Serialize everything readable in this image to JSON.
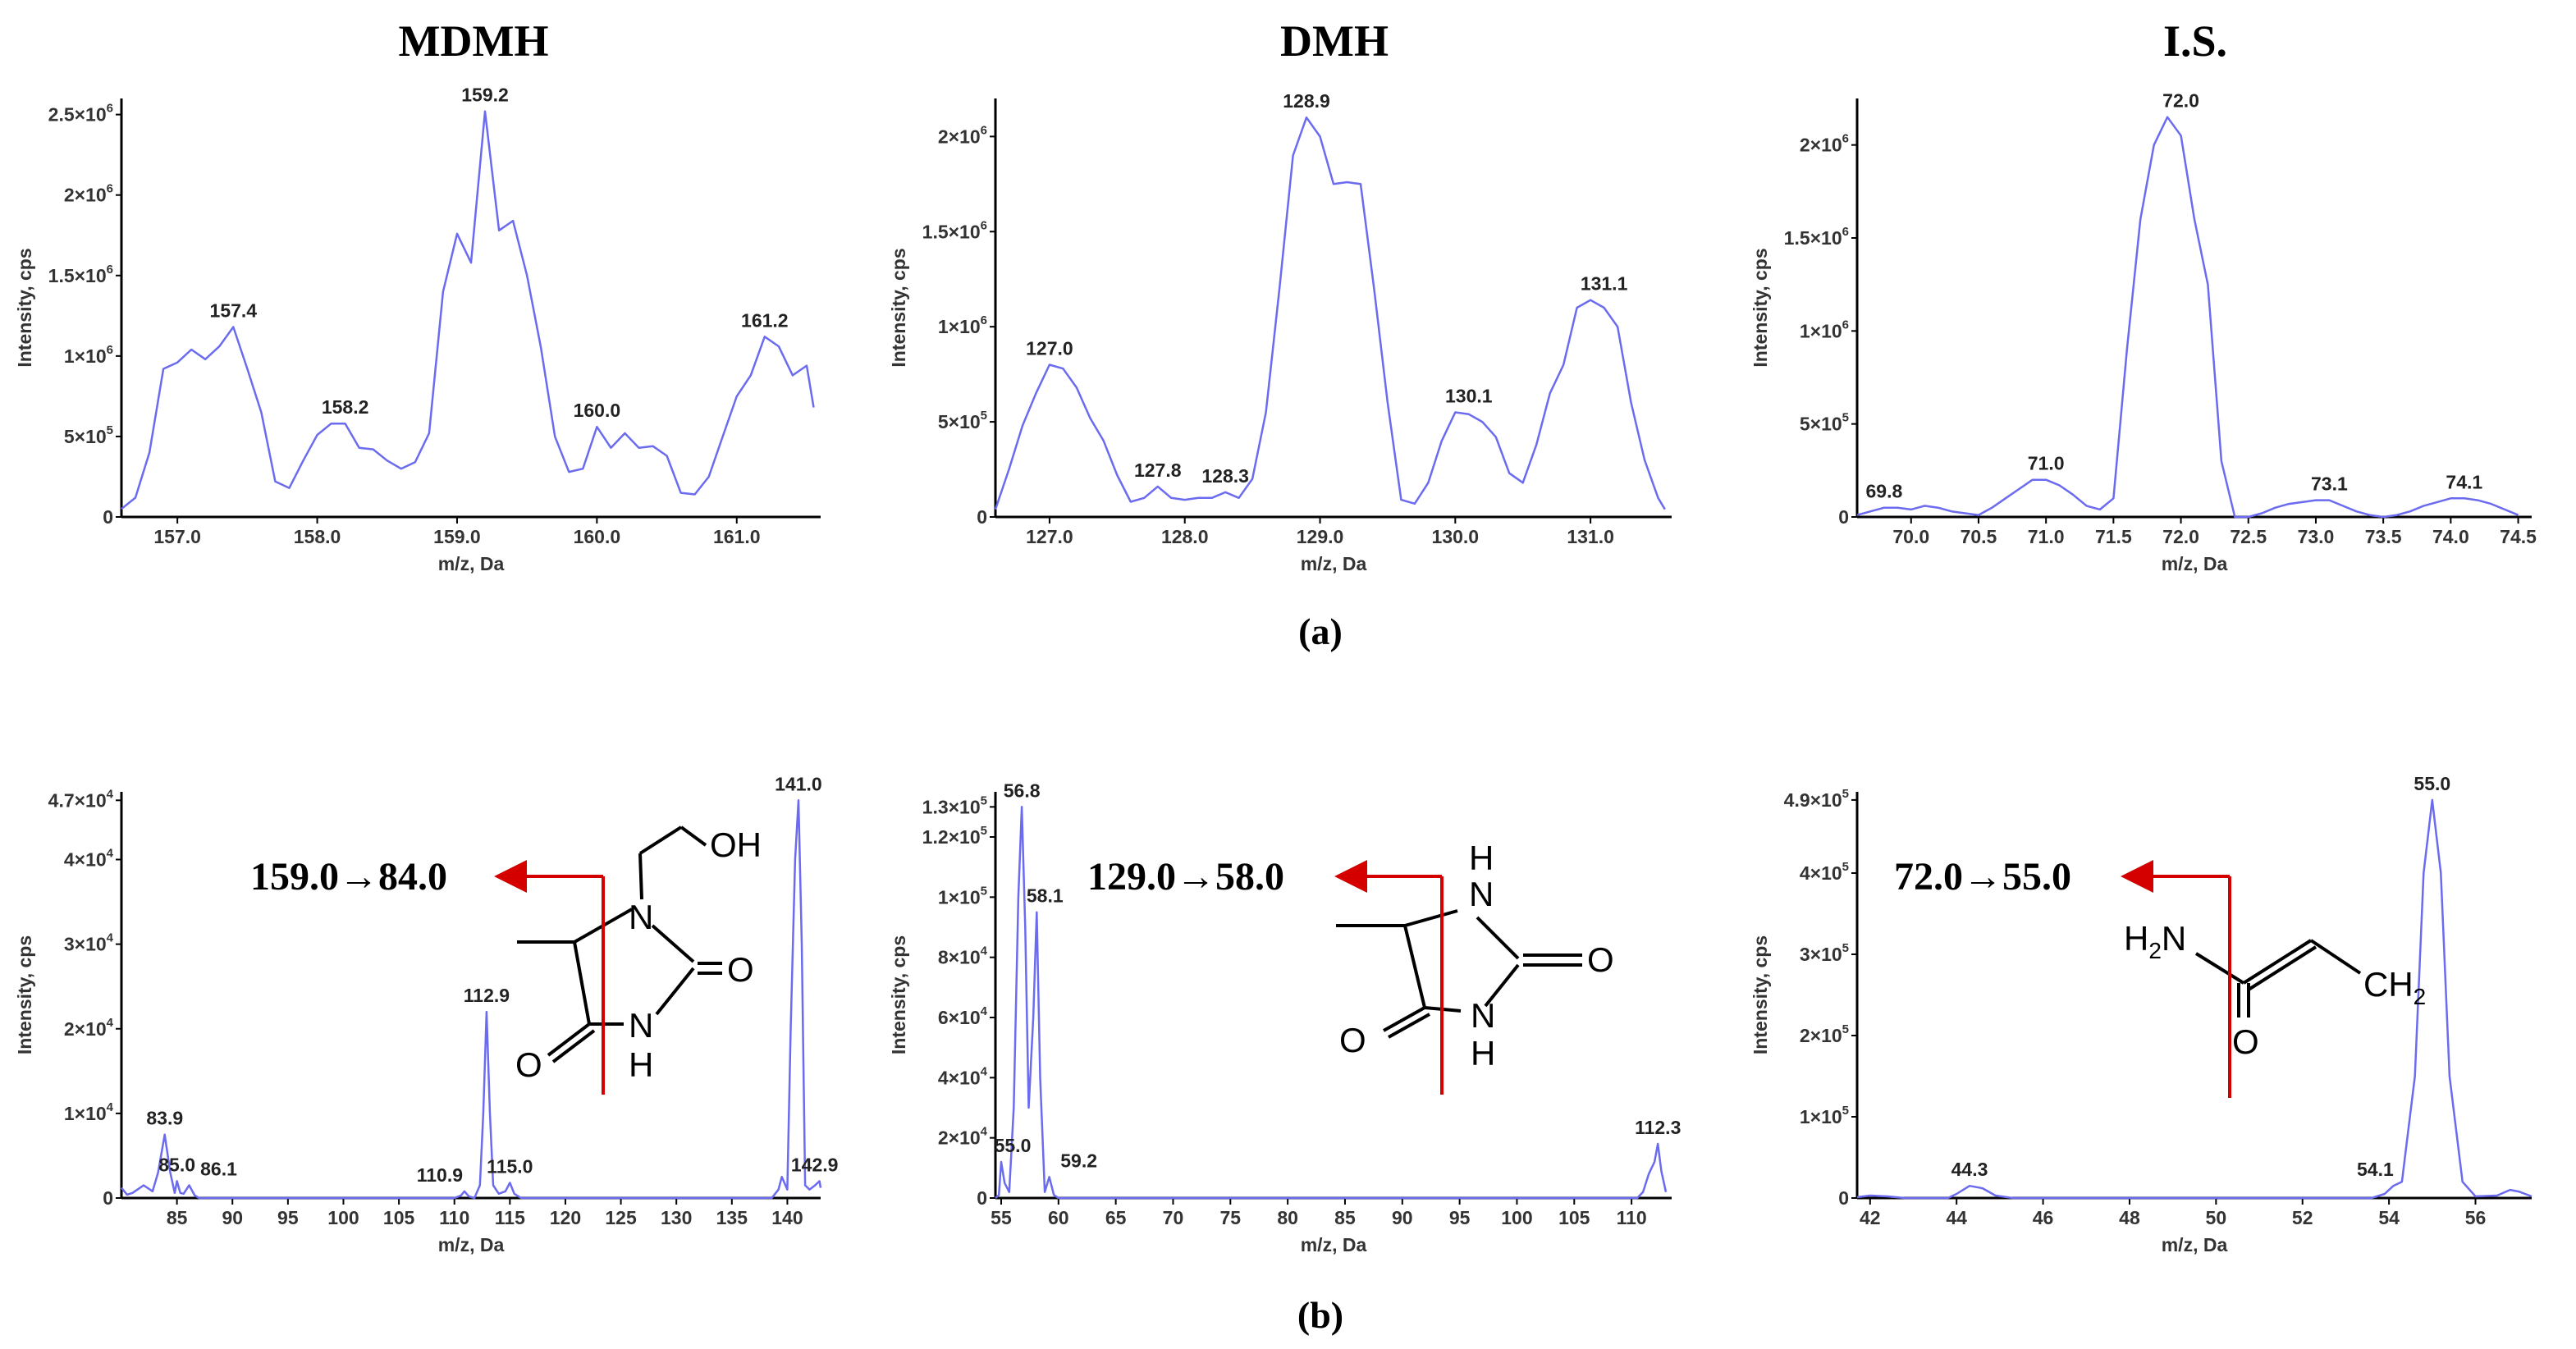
{
  "column_titles": [
    "MDMH",
    "DMH",
    "I.S."
  ],
  "panel_labels": {
    "a": "(a)",
    "b": "(b)"
  },
  "colors": {
    "trace": "#6b6bf0",
    "arrow": "#d40000",
    "axis": "#000000"
  },
  "chart_data": [
    {
      "id": "a1",
      "type": "line",
      "title": "",
      "xlabel": "m/z, Da",
      "ylabel": "Intensity, cps",
      "xlim": [
        156.6,
        161.6
      ],
      "ylim": [
        0,
        2600000
      ],
      "xticks": [
        {
          "v": 157.0,
          "t": "157.0"
        },
        {
          "v": 158.0,
          "t": "158.0"
        },
        {
          "v": 159.0,
          "t": "159.0"
        },
        {
          "v": 160.0,
          "t": "160.0"
        },
        {
          "v": 161.0,
          "t": "161.0"
        }
      ],
      "yticks": [
        {
          "v": 0,
          "m": "0",
          "e": ""
        },
        {
          "v": 500000,
          "m": "5×10",
          "e": "5"
        },
        {
          "v": 1000000,
          "m": "1×10",
          "e": "6"
        },
        {
          "v": 1500000,
          "m": "1.5×10",
          "e": "6"
        },
        {
          "v": 2000000,
          "m": "2×10",
          "e": "6"
        },
        {
          "v": 2500000,
          "m": "2.5×10",
          "e": "6"
        }
      ],
      "x": [
        156.6,
        156.7,
        156.8,
        156.9,
        157.0,
        157.1,
        157.2,
        157.3,
        157.4,
        157.5,
        157.6,
        157.7,
        157.8,
        157.9,
        158.0,
        158.1,
        158.2,
        158.3,
        158.4,
        158.5,
        158.6,
        158.7,
        158.8,
        158.9,
        159.0,
        159.1,
        159.2,
        159.3,
        159.4,
        159.5,
        159.6,
        159.7,
        159.8,
        159.9,
        160.0,
        160.1,
        160.2,
        160.3,
        160.4,
        160.5,
        160.6,
        160.7,
        160.8,
        160.9,
        161.0,
        161.1,
        161.2,
        161.3,
        161.4,
        161.5,
        161.55
      ],
      "y": [
        50000,
        120000,
        400000,
        920000,
        960000,
        1040000,
        980000,
        1060000,
        1180000,
        920000,
        650000,
        220000,
        180000,
        350000,
        510000,
        580000,
        580000,
        430000,
        420000,
        350000,
        300000,
        340000,
        520000,
        1400000,
        1760000,
        1580000,
        2520000,
        1780000,
        1840000,
        1500000,
        1050000,
        500000,
        280000,
        300000,
        560000,
        430000,
        520000,
        430000,
        440000,
        380000,
        150000,
        140000,
        250000,
        500000,
        750000,
        880000,
        1120000,
        1060000,
        880000,
        940000,
        680000
      ],
      "peaks": [
        {
          "x": 157.4,
          "y": 1180000,
          "t": "157.4"
        },
        {
          "x": 158.2,
          "y": 580000,
          "t": "158.2"
        },
        {
          "x": 159.2,
          "y": 2520000,
          "t": "159.2"
        },
        {
          "x": 160.0,
          "y": 560000,
          "t": "160.0"
        },
        {
          "x": 161.2,
          "y": 1120000,
          "t": "161.2"
        }
      ]
    },
    {
      "id": "a2",
      "type": "line",
      "title": "",
      "xlabel": "m/z, Da",
      "ylabel": "Intensity, cps",
      "xlim": [
        126.6,
        131.6
      ],
      "ylim": [
        0,
        2200000
      ],
      "xticks": [
        {
          "v": 127.0,
          "t": "127.0"
        },
        {
          "v": 128.0,
          "t": "128.0"
        },
        {
          "v": 129.0,
          "t": "129.0"
        },
        {
          "v": 130.0,
          "t": "130.0"
        },
        {
          "v": 131.0,
          "t": "131.0"
        }
      ],
      "yticks": [
        {
          "v": 0,
          "m": "0",
          "e": ""
        },
        {
          "v": 500000,
          "m": "5×10",
          "e": "5"
        },
        {
          "v": 1000000,
          "m": "1×10",
          "e": "6"
        },
        {
          "v": 1500000,
          "m": "1.5×10",
          "e": "6"
        },
        {
          "v": 2000000,
          "m": "2×10",
          "e": "6"
        }
      ],
      "x": [
        126.6,
        126.7,
        126.8,
        126.9,
        127.0,
        127.1,
        127.2,
        127.3,
        127.4,
        127.5,
        127.6,
        127.7,
        127.8,
        127.9,
        128.0,
        128.1,
        128.2,
        128.3,
        128.4,
        128.5,
        128.6,
        128.7,
        128.8,
        128.9,
        129.0,
        129.1,
        129.2,
        129.3,
        129.4,
        129.5,
        129.6,
        129.7,
        129.8,
        129.9,
        130.0,
        130.1,
        130.2,
        130.3,
        130.4,
        130.5,
        130.6,
        130.7,
        130.8,
        130.9,
        131.0,
        131.1,
        131.2,
        131.3,
        131.4,
        131.5,
        131.55
      ],
      "y": [
        40000,
        250000,
        480000,
        650000,
        800000,
        780000,
        680000,
        520000,
        400000,
        220000,
        80000,
        100000,
        160000,
        100000,
        90000,
        100000,
        100000,
        130000,
        100000,
        200000,
        550000,
        1200000,
        1900000,
        2100000,
        2000000,
        1750000,
        1760000,
        1750000,
        1200000,
        600000,
        90000,
        70000,
        180000,
        400000,
        550000,
        540000,
        500000,
        420000,
        230000,
        180000,
        380000,
        650000,
        800000,
        1100000,
        1140000,
        1100000,
        1000000,
        600000,
        300000,
        100000,
        40000
      ],
      "peaks": [
        {
          "x": 127.0,
          "y": 800000,
          "t": "127.0"
        },
        {
          "x": 127.8,
          "y": 160000,
          "t": "127.8"
        },
        {
          "x": 128.3,
          "y": 130000,
          "t": "128.3"
        },
        {
          "x": 128.9,
          "y": 2100000,
          "t": "128.9"
        },
        {
          "x": 130.1,
          "y": 550000,
          "t": "130.1"
        },
        {
          "x": 131.1,
          "y": 1140000,
          "t": "131.1"
        }
      ]
    },
    {
      "id": "a3",
      "type": "line",
      "title": "",
      "xlabel": "m/z, Da",
      "ylabel": "Intensity, cps",
      "xlim": [
        69.6,
        74.6
      ],
      "ylim": [
        0,
        2250000
      ],
      "xticks": [
        {
          "v": 70.0,
          "t": "70.0"
        },
        {
          "v": 70.5,
          "t": "70.5"
        },
        {
          "v": 71.0,
          "t": "71.0"
        },
        {
          "v": 71.5,
          "t": "71.5"
        },
        {
          "v": 72.0,
          "t": "72.0"
        },
        {
          "v": 72.5,
          "t": "72.5"
        },
        {
          "v": 73.0,
          "t": "73.0"
        },
        {
          "v": 73.5,
          "t": "73.5"
        },
        {
          "v": 74.0,
          "t": "74.0"
        },
        {
          "v": 74.5,
          "t": "74.5"
        }
      ],
      "yticks": [
        {
          "v": 0,
          "m": "0",
          "e": ""
        },
        {
          "v": 500000,
          "m": "5×10",
          "e": "5"
        },
        {
          "v": 1000000,
          "m": "1×10",
          "e": "6"
        },
        {
          "v": 1500000,
          "m": "1.5×10",
          "e": "6"
        },
        {
          "v": 2000000,
          "m": "2×10",
          "e": "6"
        }
      ],
      "x": [
        69.6,
        69.7,
        69.8,
        69.9,
        70.0,
        70.1,
        70.2,
        70.3,
        70.4,
        70.5,
        70.6,
        70.7,
        70.8,
        70.9,
        71.0,
        71.1,
        71.2,
        71.3,
        71.4,
        71.5,
        71.6,
        71.7,
        71.8,
        71.9,
        72.0,
        72.1,
        72.2,
        72.3,
        72.4,
        72.5,
        72.6,
        72.7,
        72.8,
        72.9,
        73.0,
        73.1,
        73.2,
        73.3,
        73.4,
        73.5,
        73.6,
        73.7,
        73.8,
        73.9,
        74.0,
        74.1,
        74.2,
        74.3,
        74.4,
        74.5
      ],
      "y": [
        10000,
        30000,
        50000,
        50000,
        40000,
        60000,
        50000,
        30000,
        20000,
        10000,
        50000,
        100000,
        150000,
        200000,
        200000,
        170000,
        120000,
        60000,
        40000,
        100000,
        900000,
        1600000,
        2000000,
        2150000,
        2050000,
        1600000,
        1250000,
        300000,
        0,
        0,
        20000,
        50000,
        70000,
        80000,
        90000,
        90000,
        60000,
        30000,
        10000,
        0,
        10000,
        30000,
        60000,
        80000,
        100000,
        100000,
        90000,
        70000,
        40000,
        10000
      ],
      "peaks": [
        {
          "x": 69.8,
          "y": 50000,
          "t": "69.8"
        },
        {
          "x": 71.0,
          "y": 200000,
          "t": "71.0"
        },
        {
          "x": 72.0,
          "y": 2150000,
          "t": "72.0"
        },
        {
          "x": 73.1,
          "y": 90000,
          "t": "73.1"
        },
        {
          "x": 74.1,
          "y": 100000,
          "t": "74.1"
        }
      ]
    },
    {
      "id": "b1",
      "type": "line",
      "title": "",
      "xlabel": "m/z, Da",
      "ylabel": "Intensity, cps",
      "xlim": [
        80,
        143
      ],
      "ylim": [
        0,
        48000
      ],
      "xticks": [
        {
          "v": 85,
          "t": "85"
        },
        {
          "v": 90,
          "t": "90"
        },
        {
          "v": 95,
          "t": "95"
        },
        {
          "v": 100,
          "t": "100"
        },
        {
          "v": 105,
          "t": "105"
        },
        {
          "v": 110,
          "t": "110"
        },
        {
          "v": 115,
          "t": "115"
        },
        {
          "v": 120,
          "t": "120"
        },
        {
          "v": 125,
          "t": "125"
        },
        {
          "v": 130,
          "t": "130"
        },
        {
          "v": 135,
          "t": "135"
        },
        {
          "v": 140,
          "t": "140"
        }
      ],
      "yticks": [
        {
          "v": 0,
          "m": "0",
          "e": ""
        },
        {
          "v": 10000,
          "m": "1×10",
          "e": "4"
        },
        {
          "v": 20000,
          "m": "2×10",
          "e": "4"
        },
        {
          "v": 30000,
          "m": "3×10",
          "e": "4"
        },
        {
          "v": 40000,
          "m": "4×10",
          "e": "4"
        },
        {
          "v": 47000,
          "m": "4.7×10",
          "e": "4"
        }
      ],
      "x": [
        80.0,
        80.5,
        81.0,
        82.0,
        82.8,
        83.3,
        83.9,
        84.4,
        84.8,
        85.0,
        85.3,
        85.6,
        86.1,
        86.6,
        87.0,
        110.0,
        110.6,
        110.9,
        111.3,
        111.8,
        112.3,
        112.6,
        112.9,
        113.2,
        113.5,
        114.0,
        114.6,
        115.0,
        115.4,
        116.0,
        138.6,
        139.2,
        139.5,
        140.0,
        140.3,
        140.7,
        141.0,
        141.3,
        141.6,
        142.0,
        142.5,
        142.9,
        143.0
      ],
      "y": [
        1200,
        400,
        600,
        1500,
        800,
        3000,
        7500,
        3000,
        600,
        2000,
        600,
        500,
        1500,
        300,
        0,
        0,
        300,
        800,
        200,
        0,
        1500,
        10000,
        22000,
        10000,
        1500,
        500,
        800,
        1800,
        500,
        0,
        0,
        1000,
        2500,
        1000,
        20000,
        40000,
        47000,
        30000,
        1500,
        1000,
        1500,
        2000,
        1200
      ],
      "peaks": [
        {
          "x": 83.9,
          "y": 7500,
          "t": "83.9",
          "dx": 0
        },
        {
          "x": 85.0,
          "y": 2000,
          "t": "85.0",
          "dx": 0
        },
        {
          "x": 86.1,
          "y": 1500,
          "t": "86.1",
          "dx": 36
        },
        {
          "x": 110.9,
          "y": 800,
          "t": "110.9",
          "dx": -30
        },
        {
          "x": 112.9,
          "y": 22000,
          "t": "112.9",
          "dx": 0
        },
        {
          "x": 115.0,
          "y": 1800,
          "t": "115.0",
          "dx": 0
        },
        {
          "x": 141.0,
          "y": 47000,
          "t": "141.0",
          "dx": 0
        },
        {
          "x": 142.9,
          "y": 2000,
          "t": "142.9",
          "dx": -6
        }
      ]
    },
    {
      "id": "b2",
      "type": "line",
      "title": "",
      "xlabel": "m/z, Da",
      "ylabel": "Intensity, cps",
      "xlim": [
        54.5,
        113.5
      ],
      "ylim": [
        0,
        135000
      ],
      "xticks": [
        {
          "v": 55,
          "t": "55"
        },
        {
          "v": 60,
          "t": "60"
        },
        {
          "v": 65,
          "t": "65"
        },
        {
          "v": 70,
          "t": "70"
        },
        {
          "v": 75,
          "t": "75"
        },
        {
          "v": 80,
          "t": "80"
        },
        {
          "v": 85,
          "t": "85"
        },
        {
          "v": 90,
          "t": "90"
        },
        {
          "v": 95,
          "t": "95"
        },
        {
          "v": 100,
          "t": "100"
        },
        {
          "v": 105,
          "t": "105"
        },
        {
          "v": 110,
          "t": "110"
        }
      ],
      "yticks": [
        {
          "v": 0,
          "m": "0",
          "e": ""
        },
        {
          "v": 20000,
          "m": "2×10",
          "e": "4"
        },
        {
          "v": 40000,
          "m": "4×10",
          "e": "4"
        },
        {
          "v": 60000,
          "m": "6×10",
          "e": "4"
        },
        {
          "v": 80000,
          "m": "8×10",
          "e": "4"
        },
        {
          "v": 100000,
          "m": "1×10",
          "e": "5"
        },
        {
          "v": 120000,
          "m": "1.2×10",
          "e": "5"
        },
        {
          "v": 130000,
          "m": "1.3×10",
          "e": "5"
        }
      ],
      "x": [
        54.5,
        54.8,
        55.0,
        55.3,
        55.7,
        56.1,
        56.5,
        56.8,
        57.1,
        57.4,
        57.8,
        58.1,
        58.4,
        58.8,
        59.2,
        59.6,
        60.0,
        110.5,
        111.0,
        111.5,
        112.0,
        112.3,
        112.6,
        113.0
      ],
      "y": [
        0,
        1000,
        12000,
        5000,
        2000,
        30000,
        100000,
        130000,
        90000,
        30000,
        60000,
        95000,
        40000,
        2000,
        7000,
        1000,
        0,
        0,
        2000,
        8000,
        12000,
        18000,
        9000,
        2000
      ],
      "peaks": [
        {
          "x": 55.0,
          "y": 12000,
          "t": "55.0",
          "dx": 14
        },
        {
          "x": 56.8,
          "y": 130000,
          "t": "56.8",
          "dx": 0
        },
        {
          "x": 58.1,
          "y": 95000,
          "t": "58.1",
          "dx": 10
        },
        {
          "x": 59.2,
          "y": 7000,
          "t": "59.2",
          "dx": 36
        },
        {
          "x": 112.3,
          "y": 18000,
          "t": "112.3",
          "dx": 0
        }
      ]
    },
    {
      "id": "b3",
      "type": "line",
      "title": "",
      "xlabel": "m/z, Da",
      "ylabel": "Intensity, cps",
      "xlim": [
        41.7,
        57.3
      ],
      "ylim": [
        0,
        500000
      ],
      "xticks": [
        {
          "v": 42,
          "t": "42"
        },
        {
          "v": 44,
          "t": "44"
        },
        {
          "v": 46,
          "t": "46"
        },
        {
          "v": 48,
          "t": "48"
        },
        {
          "v": 50,
          "t": "50"
        },
        {
          "v": 52,
          "t": "52"
        },
        {
          "v": 54,
          "t": "54"
        },
        {
          "v": 56,
          "t": "56"
        }
      ],
      "yticks": [
        {
          "v": 0,
          "m": "0",
          "e": ""
        },
        {
          "v": 100000,
          "m": "1×10",
          "e": "5"
        },
        {
          "v": 200000,
          "m": "2×10",
          "e": "5"
        },
        {
          "v": 300000,
          "m": "3×10",
          "e": "5"
        },
        {
          "v": 400000,
          "m": "4×10",
          "e": "5"
        },
        {
          "v": 490000,
          "m": "4.9×10",
          "e": "5"
        }
      ],
      "x": [
        41.7,
        42.0,
        42.4,
        42.8,
        43.8,
        44.0,
        44.3,
        44.6,
        44.9,
        45.3,
        53.6,
        53.9,
        54.1,
        54.3,
        54.6,
        54.8,
        55.0,
        55.2,
        55.4,
        55.7,
        56.0,
        56.5,
        56.8,
        57.0,
        57.3
      ],
      "y": [
        1000,
        3000,
        2000,
        0,
        0,
        5000,
        15000,
        12000,
        3000,
        0,
        0,
        5000,
        15000,
        20000,
        150000,
        400000,
        490000,
        400000,
        150000,
        20000,
        2000,
        3000,
        10000,
        8000,
        2000
      ],
      "peaks": [
        {
          "x": 44.3,
          "y": 15000,
          "t": "44.3",
          "dx": 0
        },
        {
          "x": 54.1,
          "y": 15000,
          "t": "54.1",
          "dx": -22
        },
        {
          "x": 55.0,
          "y": 490000,
          "t": "55.0",
          "dx": 0
        }
      ]
    }
  ],
  "transitions": [
    {
      "panel": "b1",
      "label": "159.0→84.0"
    },
    {
      "panel": "b2",
      "label": "129.0→58.0"
    },
    {
      "panel": "b3",
      "label": "72.0→55.0"
    }
  ],
  "molecules": {
    "mdmh": {
      "oh": "OH",
      "n1": "N",
      "n2": "N",
      "h": "H",
      "o": "O",
      "o2": "O"
    },
    "dmh": {
      "h1": "H",
      "n1": "N",
      "n2": "N",
      "h2": "H",
      "o": "O",
      "o2": "O"
    },
    "acrylamide": {
      "h2n_main": "H",
      "h2n_sub": "2",
      "h2n_n": "N",
      "o": "O",
      "ch2_main": "CH",
      "ch2_sub": "2"
    }
  }
}
